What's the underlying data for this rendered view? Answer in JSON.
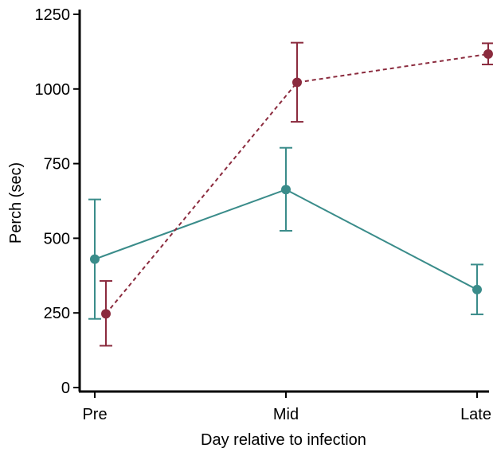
{
  "chart_data": {
    "type": "line",
    "xlabel": "Day relative to infection",
    "ylabel": "Perch (sec)",
    "categories": [
      "Pre",
      "Mid",
      "Late"
    ],
    "yticks": [
      0,
      250,
      500,
      750,
      1000,
      1250
    ],
    "ylim": [
      0,
      1250
    ],
    "grid": false,
    "series": [
      {
        "color": "#3a8c8a",
        "line_style": "solid",
        "values": [
          430,
          663,
          328
        ],
        "error_low": [
          230,
          525,
          245
        ],
        "error_high": [
          630,
          803,
          412
        ]
      },
      {
        "color": "#8b2b3e",
        "line_style": "dashed",
        "values": [
          247,
          1022,
          1117
        ],
        "error_low": [
          140,
          890,
          1082
        ],
        "error_high": [
          357,
          1155,
          1153
        ]
      }
    ]
  }
}
